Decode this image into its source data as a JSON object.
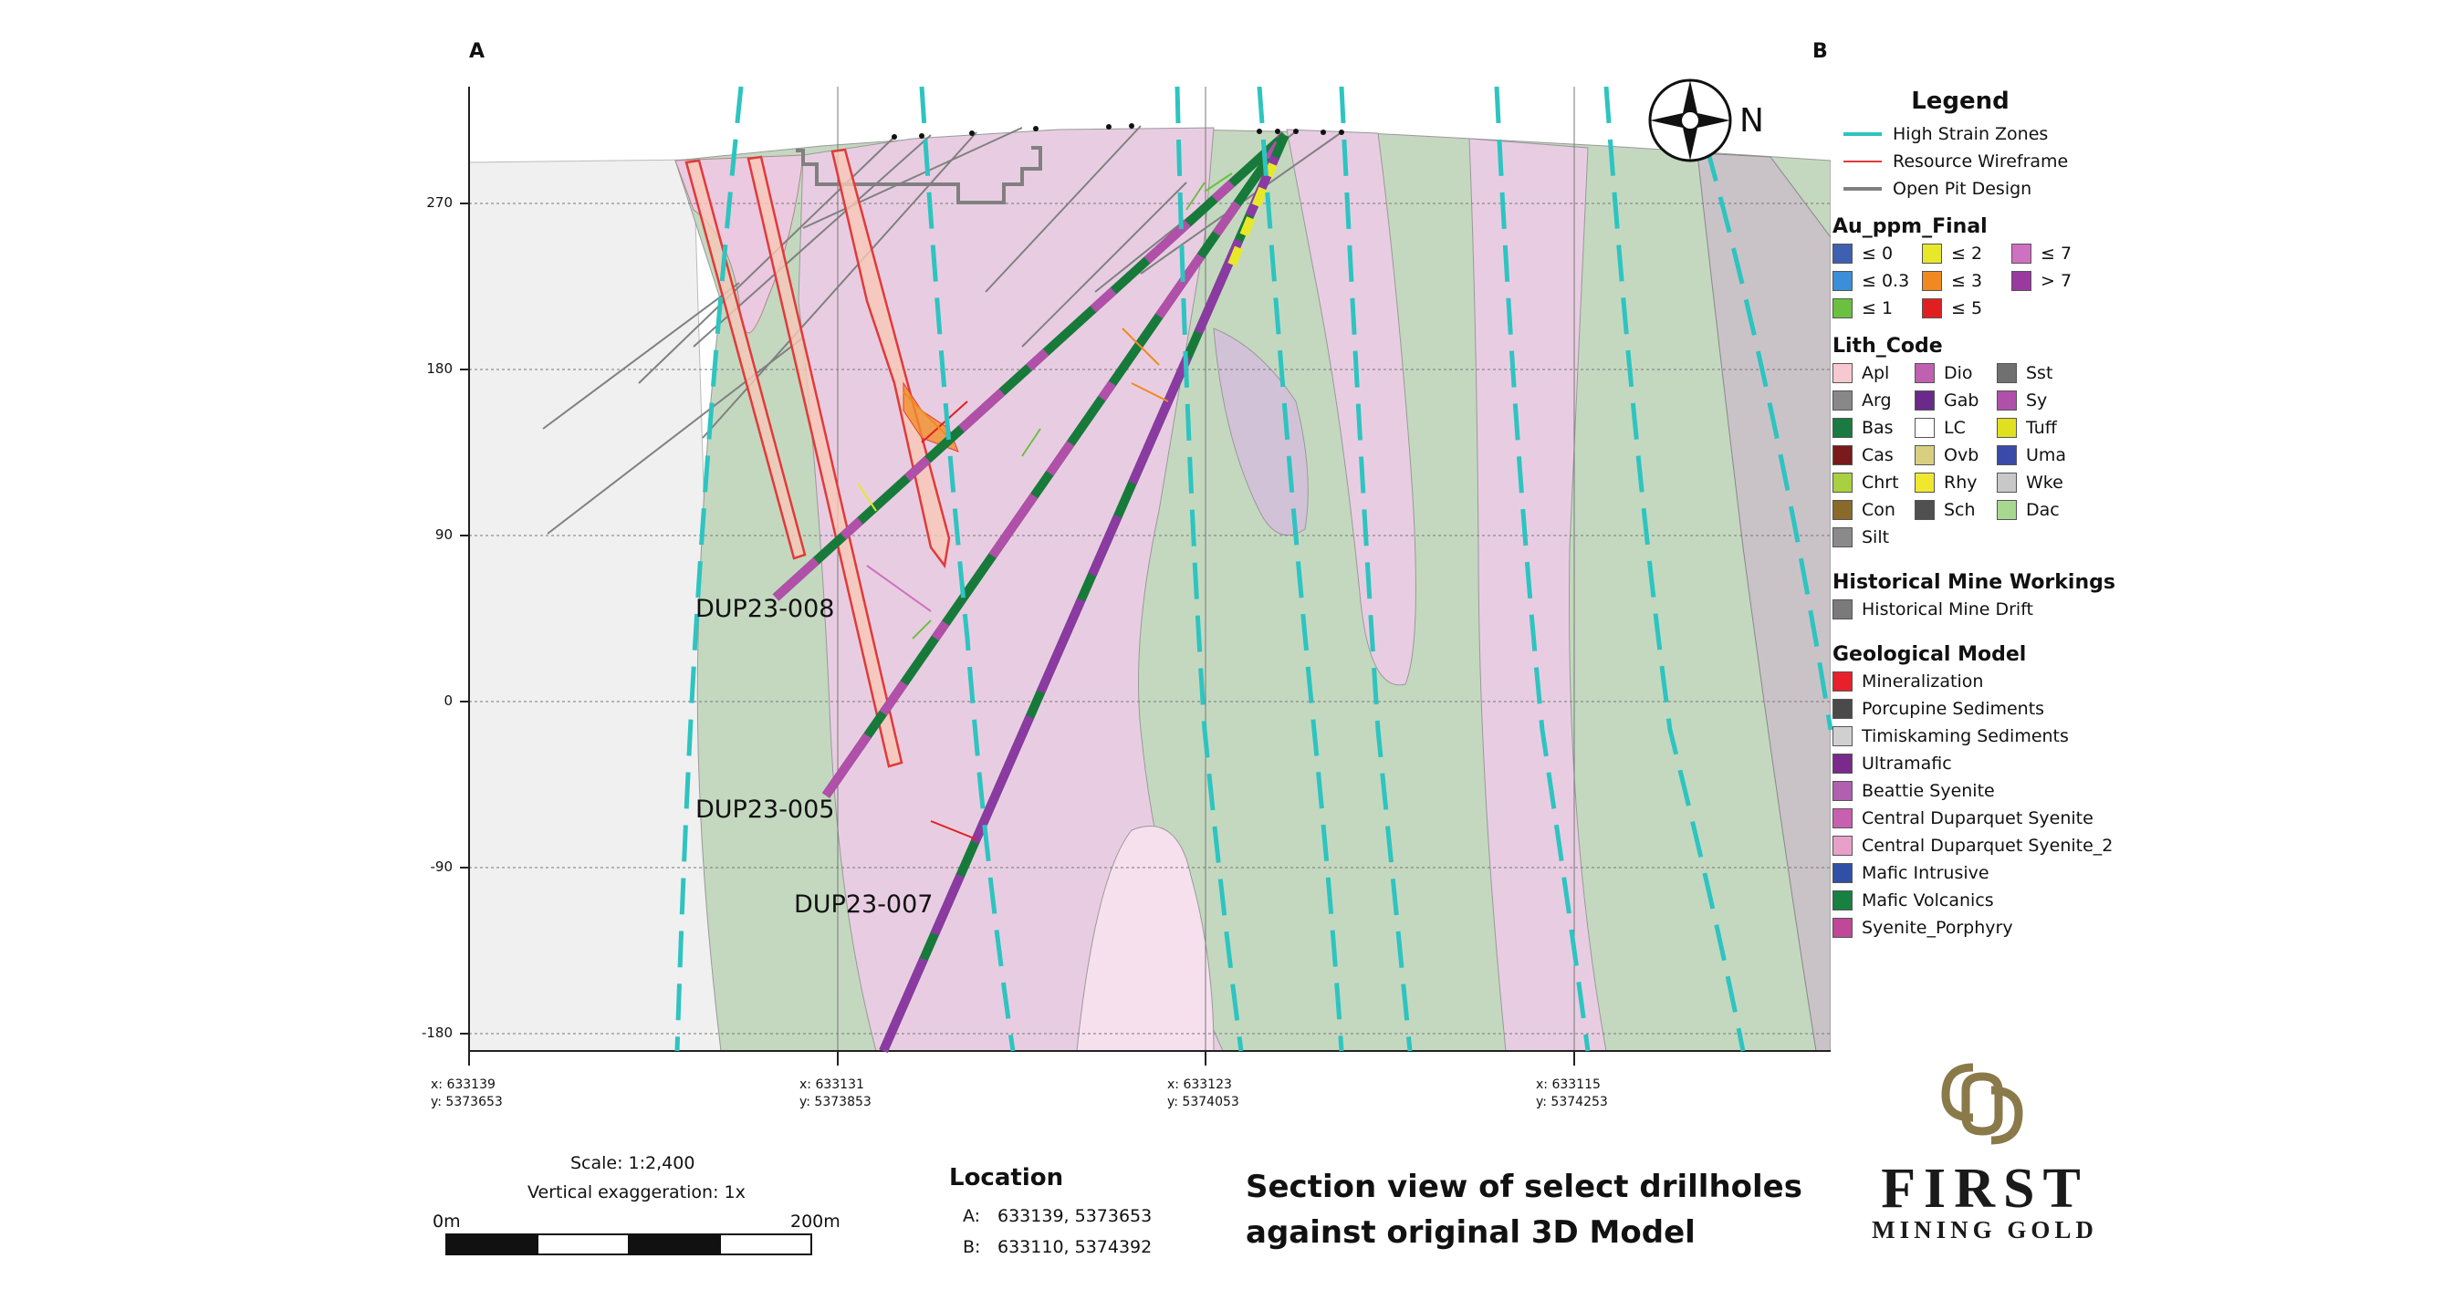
{
  "section": {
    "corner_left": "A",
    "corner_right": "B",
    "north": "N",
    "elevation_ticks": [
      "270",
      "180",
      "90",
      "0",
      "-90",
      "-180"
    ],
    "x_coords": [
      {
        "x": "x: 633139",
        "y": "y: 5373653"
      },
      {
        "x": "x: 633131",
        "y": "y: 5373853"
      },
      {
        "x": "x: 633123",
        "y": "y: 5374053"
      },
      {
        "x": "x: 633115",
        "y": "y: 5374253"
      }
    ],
    "drillholes": [
      "DUP23-008",
      "DUP23-005",
      "DUP23-007"
    ]
  },
  "scale": {
    "scale_text": "Scale: 1:2,400",
    "exaggeration": "Vertical exaggeration: 1x",
    "bar_start": "0m",
    "bar_end": "200m"
  },
  "location": {
    "title": "Location",
    "rows": [
      {
        "key": "A:",
        "value": "633139, 5373653"
      },
      {
        "key": "B:",
        "value": "633110, 5374392"
      }
    ]
  },
  "title": {
    "line1": "Section view of select drillholes",
    "line2": "against original 3D Model"
  },
  "legend": {
    "title": "Legend",
    "lines": [
      {
        "label": "High Strain Zones",
        "color": "#2ec4c0"
      },
      {
        "label": "Resource Wireframe",
        "color": "#e03a3a"
      },
      {
        "label": "Open Pit Design",
        "color": "#808080"
      }
    ],
    "au_title": "Au_ppm_Final",
    "au_items": [
      {
        "label": "≤ 0",
        "color": "#3f5fb0"
      },
      {
        "label": "≤ 2",
        "color": "#e8e82a"
      },
      {
        "label": "≤ 7",
        "color": "#d070c0"
      },
      {
        "label": "≤ 0.3",
        "color": "#3a8fd8"
      },
      {
        "label": "≤ 3",
        "color": "#f08a20"
      },
      {
        "label": "> 7",
        "color": "#9a3aa0"
      },
      {
        "label": "≤ 1",
        "color": "#6cc040"
      },
      {
        "label": "≤ 5",
        "color": "#e02020"
      }
    ],
    "lith_title": "Lith_Code",
    "lith_items": [
      {
        "label": "Apl",
        "color": "#f7c8d0"
      },
      {
        "label": "Dio",
        "color": "#c060b0"
      },
      {
        "label": "Sst",
        "color": "#707070"
      },
      {
        "label": "Arg",
        "color": "#888888"
      },
      {
        "label": "Gab",
        "color": "#6a2a8a"
      },
      {
        "label": "Sy",
        "color": "#b050a8"
      },
      {
        "label": "Bas",
        "color": "#1a7a40"
      },
      {
        "label": "LC",
        "color": "#ffffff"
      },
      {
        "label": "Tuff",
        "color": "#e0e020"
      },
      {
        "label": "Cas",
        "color": "#7a1a1a"
      },
      {
        "label": "Ovb",
        "color": "#d8cf80"
      },
      {
        "label": "Uma",
        "color": "#3a4aa8"
      },
      {
        "label": "Chrt",
        "color": "#a8d040"
      },
      {
        "label": "Rhy",
        "color": "#f0e830"
      },
      {
        "label": "Wke",
        "color": "#c8c8c8"
      },
      {
        "label": "Con",
        "color": "#8a6a2a"
      },
      {
        "label": "Sch",
        "color": "#505050"
      },
      {
        "label": "Dac",
        "color": "#a8d890"
      },
      {
        "label": "Silt",
        "color": "#8a8a8a"
      }
    ],
    "hist_title": "Historical Mine Workings",
    "hist_items": [
      {
        "label": "Historical Mine Drift",
        "color": "#7a7a7a"
      }
    ],
    "geo_title": "Geological Model",
    "geo_items": [
      {
        "label": "Mineralization",
        "color": "#e8202a"
      },
      {
        "label": "Porcupine Sediments",
        "color": "#4a4a4a"
      },
      {
        "label": "Timiskaming Sediments",
        "color": "#d0d0d0"
      },
      {
        "label": "Ultramafic",
        "color": "#7a2a8a"
      },
      {
        "label": "Beattie Syenite",
        "color": "#b060b0"
      },
      {
        "label": "Central Duparquet Syenite",
        "color": "#c860b0"
      },
      {
        "label": "Central Duparquet Syenite_2",
        "color": "#e8a0c8"
      },
      {
        "label": "Mafic Intrusive",
        "color": "#3050a8"
      },
      {
        "label": "Mafic Volcanics",
        "color": "#188040"
      },
      {
        "label": "Syenite_Porphyry",
        "color": "#c04898"
      }
    ]
  },
  "logo": {
    "line1": "FIRST",
    "line2": "MINING GOLD"
  }
}
